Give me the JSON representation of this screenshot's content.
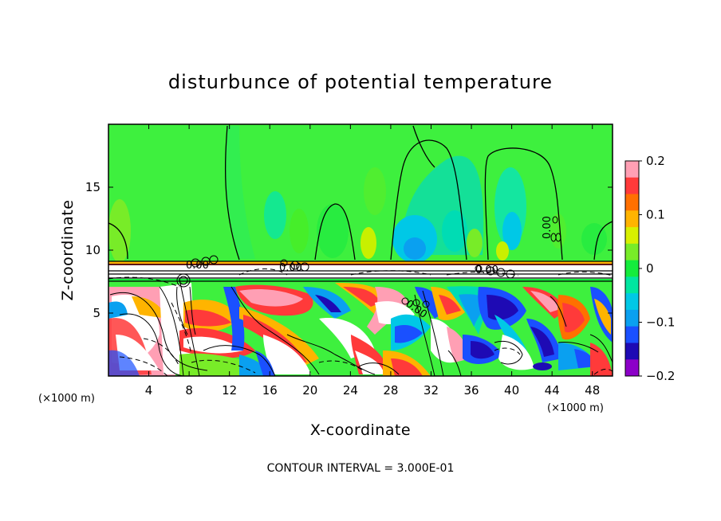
{
  "chart_data": {
    "type": "heatmap",
    "title": "disturbunce of potential temperature",
    "xlabel": "X-coordinate",
    "ylabel": "Z-coordinate",
    "x_unit": "(×1000 m)",
    "z_unit": "(×1000 m)",
    "xlim": [
      0,
      50
    ],
    "ylim": [
      0,
      20
    ],
    "x_ticks": [
      4,
      8,
      12,
      16,
      20,
      24,
      28,
      32,
      36,
      40,
      44,
      48
    ],
    "y_ticks": [
      5,
      10,
      15
    ],
    "colorbar": {
      "min": -0.2,
      "max": 0.2,
      "tick_values": [
        0.2,
        0.1,
        0,
        -0.1,
        -0.2
      ],
      "tick_labels": [
        "0.2",
        "0.1",
        "0",
        "−0.1",
        "−0.2"
      ],
      "colors": [
        "#ff9fb4",
        "#ff3a3a",
        "#ff7000",
        "#ffb400",
        "#d8f000",
        "#78ec28",
        "#14ec3c",
        "#00e6a0",
        "#00c8e6",
        "#0aa0f0",
        "#1a50ff",
        "#1e0ab4",
        "#8c00c8"
      ]
    },
    "contour_labels": [
      "0.00",
      "0.00",
      "0.00",
      "0.00",
      "0.00"
    ],
    "background_color": "#3ef03e",
    "footer": "CONTOUR INTERVAL =  3.000E-01"
  }
}
